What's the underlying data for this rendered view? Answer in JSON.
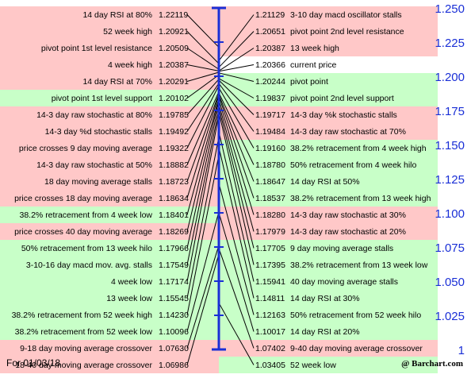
{
  "chart_data": {
    "type": "table",
    "title": "",
    "axis": {
      "ticks": [
        "1.250",
        "1.225",
        "1.200",
        "1.175",
        "1.150",
        "1.125",
        "1.100",
        "1.075",
        "1.050",
        "1.025",
        "1"
      ],
      "min": 1.0,
      "max": 1.25
    },
    "colors": {
      "above": "#ffc8c8",
      "below": "#c8ffc8",
      "current": "#ffffff",
      "axis": "#1a2fd6"
    },
    "left": [
      {
        "label": "14 day RSI at 80%",
        "value": "1.22119",
        "side": "above"
      },
      {
        "label": "52 week high",
        "value": "1.20921",
        "side": "above"
      },
      {
        "label": "pivot point 1st level resistance",
        "value": "1.20509",
        "side": "above"
      },
      {
        "label": "4 week high",
        "value": "1.20387",
        "side": "above"
      },
      {
        "label": "14 day RSI at 70%",
        "value": "1.20291",
        "side": "above"
      },
      {
        "label": "pivot point 1st level support",
        "value": "1.20102",
        "side": "below"
      },
      {
        "label": "14-3 day raw stochastic at 80%",
        "value": "1.19785",
        "side": "above"
      },
      {
        "label": "14-3 day %d stochastic stalls",
        "value": "1.19492",
        "side": "above"
      },
      {
        "label": "price crosses 9 day moving average",
        "value": "1.19322",
        "side": "above"
      },
      {
        "label": "14-3 day raw stochastic at 50%",
        "value": "1.18882",
        "side": "above"
      },
      {
        "label": "18 day moving average stalls",
        "value": "1.18723",
        "side": "above"
      },
      {
        "label": "price crosses 18 day moving average",
        "value": "1.18634",
        "side": "above"
      },
      {
        "label": "38.2% retracement from 4 week low",
        "value": "1.18401",
        "side": "below"
      },
      {
        "label": "price crosses 40 day moving average",
        "value": "1.18269",
        "side": "above"
      },
      {
        "label": "50% retracement from 13 week hilo",
        "value": "1.17966",
        "side": "below"
      },
      {
        "label": "3-10-16 day macd mov. avg. stalls",
        "value": "1.17549",
        "side": "below"
      },
      {
        "label": "4 week low",
        "value": "1.17174",
        "side": "below"
      },
      {
        "label": "13 week low",
        "value": "1.15545",
        "side": "below"
      },
      {
        "label": "38.2% retracement from 52 week high",
        "value": "1.14230",
        "side": "below"
      },
      {
        "label": "38.2% retracement from 52 week low",
        "value": "1.10096",
        "side": "below"
      },
      {
        "label": "9-18 day moving average crossover",
        "value": "1.07630",
        "side": "above"
      },
      {
        "label": "18-40 day moving average crossover",
        "value": "1.06986",
        "side": "above"
      }
    ],
    "right": [
      {
        "label": "3-10 day macd oscillator stalls",
        "value": "1.21129",
        "side": "above"
      },
      {
        "label": "pivot point 2nd level resistance",
        "value": "1.20651",
        "side": "above"
      },
      {
        "label": "13 week high",
        "value": "1.20387",
        "side": "above"
      },
      {
        "label": "current price",
        "value": "1.20366",
        "side": "current"
      },
      {
        "label": "pivot point",
        "value": "1.20244",
        "side": "below"
      },
      {
        "label": "pivot point 2nd level support",
        "value": "1.19837",
        "side": "below"
      },
      {
        "label": "14-3 day %k stochastic stalls",
        "value": "1.19717",
        "side": "above"
      },
      {
        "label": "14-3 day raw stochastic at 70%",
        "value": "1.19484",
        "side": "above"
      },
      {
        "label": "38.2% retracement from 4 week high",
        "value": "1.19160",
        "side": "below"
      },
      {
        "label": "50% retracement from 4 week hilo",
        "value": "1.18780",
        "side": "below"
      },
      {
        "label": "14 day RSI at 50%",
        "value": "1.18647",
        "side": "below"
      },
      {
        "label": "38.2% retracement from 13 week high",
        "value": "1.18537",
        "side": "below"
      },
      {
        "label": "14-3 day raw stochastic at 30%",
        "value": "1.18280",
        "side": "above"
      },
      {
        "label": "14-3 day raw stochastic at 20%",
        "value": "1.17979",
        "side": "above"
      },
      {
        "label": "9 day moving average stalls",
        "value": "1.17705",
        "side": "below"
      },
      {
        "label": "38.2% retracement from 13 week low",
        "value": "1.17395",
        "side": "below"
      },
      {
        "label": "40 day moving average stalls",
        "value": "1.15941",
        "side": "below"
      },
      {
        "label": "14 day RSI at 30%",
        "value": "1.14811",
        "side": "below"
      },
      {
        "label": "50% retracement from 52 week hilo",
        "value": "1.12163",
        "side": "below"
      },
      {
        "label": "14 day RSI at 20%",
        "value": "1.10017",
        "side": "below"
      },
      {
        "label": "9-40 day moving average crossover",
        "value": "1.07402",
        "side": "above"
      },
      {
        "label": "52 week low",
        "value": "1.03405",
        "side": "below"
      }
    ]
  },
  "footer": {
    "date": "For 01/03/18",
    "credit": "@ Barchart.com"
  }
}
